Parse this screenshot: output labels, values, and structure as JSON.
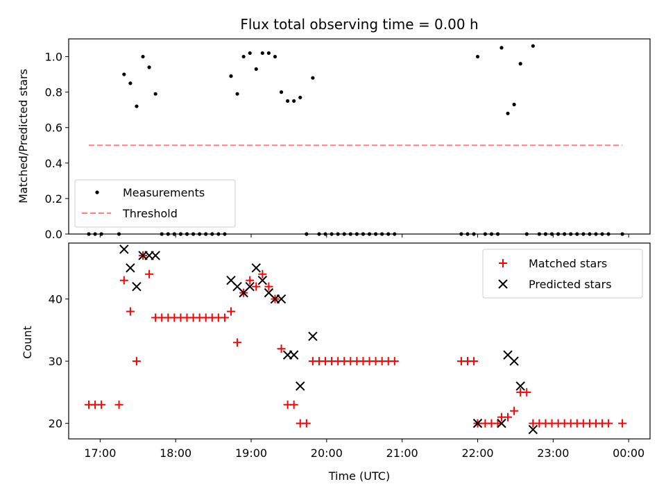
{
  "chart_data": [
    {
      "type": "scatter",
      "title": "Flux total observing time = 0.00 h",
      "ylabel": "Matched/Predicted stars",
      "xlabel": "",
      "x_is_time": true,
      "xlim": [
        "16:35",
        "00:17"
      ],
      "ylim": [
        0.0,
        1.1
      ],
      "yticks": [
        "0.0",
        "0.2",
        "0.4",
        "0.6",
        "0.8",
        "1.0"
      ],
      "xticks": [
        "17:00",
        "18:00",
        "19:00",
        "20:00",
        "21:00",
        "22:00",
        "23:00",
        "00:00"
      ],
      "legend": {
        "position": "lower-left",
        "entries": [
          "Measurements",
          "Threshold"
        ]
      },
      "series": [
        {
          "name": "Measurements",
          "marker": "dot",
          "color": "#000000",
          "points": [
            [
              "16:51",
              0.0
            ],
            [
              "16:56",
              0.0
            ],
            [
              "17:01",
              0.0
            ],
            [
              "17:15",
              0.0
            ],
            [
              "17:19",
              0.9
            ],
            [
              "17:24",
              0.85
            ],
            [
              "17:29",
              0.72
            ],
            [
              "17:34",
              1.0
            ],
            [
              "17:39",
              0.94
            ],
            [
              "17:44",
              0.79
            ],
            [
              "17:49",
              0.0
            ],
            [
              "17:54",
              0.0
            ],
            [
              "17:59",
              0.0
            ],
            [
              "18:04",
              0.0
            ],
            [
              "18:09",
              0.0
            ],
            [
              "18:14",
              0.0
            ],
            [
              "18:19",
              0.0
            ],
            [
              "18:24",
              0.0
            ],
            [
              "18:29",
              0.0
            ],
            [
              "18:34",
              0.0
            ],
            [
              "18:39",
              0.0
            ],
            [
              "18:44",
              0.89
            ],
            [
              "18:49",
              0.79
            ],
            [
              "18:54",
              1.0
            ],
            [
              "18:59",
              1.02
            ],
            [
              "19:04",
              0.93
            ],
            [
              "19:09",
              1.02
            ],
            [
              "19:14",
              1.02
            ],
            [
              "19:19",
              1.0
            ],
            [
              "19:24",
              0.8
            ],
            [
              "19:29",
              0.75
            ],
            [
              "19:34",
              0.75
            ],
            [
              "19:39",
              0.77
            ],
            [
              "19:44",
              0.0
            ],
            [
              "19:49",
              0.88
            ],
            [
              "19:54",
              0.0
            ],
            [
              "19:59",
              0.0
            ],
            [
              "20:04",
              0.0
            ],
            [
              "20:09",
              0.0
            ],
            [
              "20:14",
              0.0
            ],
            [
              "20:19",
              0.0
            ],
            [
              "20:24",
              0.0
            ],
            [
              "20:29",
              0.0
            ],
            [
              "20:34",
              0.0
            ],
            [
              "20:39",
              0.0
            ],
            [
              "20:44",
              0.0
            ],
            [
              "20:49",
              0.0
            ],
            [
              "20:54",
              0.0
            ],
            [
              "21:47",
              0.0
            ],
            [
              "21:52",
              0.0
            ],
            [
              "21:57",
              0.0
            ],
            [
              "22:00",
              1.0
            ],
            [
              "22:06",
              0.0
            ],
            [
              "22:11",
              0.0
            ],
            [
              "22:16",
              0.0
            ],
            [
              "22:19",
              1.05
            ],
            [
              "22:24",
              0.68
            ],
            [
              "22:29",
              0.73
            ],
            [
              "22:34",
              0.96
            ],
            [
              "22:39",
              0.0
            ],
            [
              "22:44",
              1.06
            ],
            [
              "22:49",
              0.0
            ],
            [
              "22:54",
              0.0
            ],
            [
              "22:59",
              0.0
            ],
            [
              "23:04",
              0.0
            ],
            [
              "23:09",
              0.0
            ],
            [
              "23:14",
              0.0
            ],
            [
              "23:19",
              0.0
            ],
            [
              "23:24",
              0.0
            ],
            [
              "23:29",
              0.0
            ],
            [
              "23:34",
              0.0
            ],
            [
              "23:39",
              0.0
            ],
            [
              "23:44",
              0.0
            ],
            [
              "23:55",
              0.0
            ]
          ]
        },
        {
          "name": "Threshold",
          "marker": "dashed-line",
          "color": "#ff7f7f",
          "points": [
            [
              "16:51",
              0.5
            ],
            [
              "23:55",
              0.5
            ]
          ]
        }
      ]
    },
    {
      "type": "scatter",
      "title": "",
      "ylabel": "Count",
      "xlabel": "Time (UTC)",
      "x_is_time": true,
      "xlim": [
        "16:35",
        "00:17"
      ],
      "ylim": [
        17.5,
        49
      ],
      "yticks": [
        "20",
        "30",
        "40"
      ],
      "xticks": [
        "17:00",
        "18:00",
        "19:00",
        "20:00",
        "21:00",
        "22:00",
        "23:00",
        "00:00"
      ],
      "legend": {
        "position": "upper-right",
        "entries": [
          "Matched stars",
          "Predicted stars"
        ]
      },
      "series": [
        {
          "name": "Matched stars",
          "marker": "plus",
          "color": "#ff0000",
          "points": [
            [
              "16:51",
              23
            ],
            [
              "16:56",
              23
            ],
            [
              "17:01",
              23
            ],
            [
              "17:15",
              23
            ],
            [
              "17:19",
              43
            ],
            [
              "17:24",
              38
            ],
            [
              "17:29",
              30
            ],
            [
              "17:34",
              47
            ],
            [
              "17:39",
              44
            ],
            [
              "17:44",
              37
            ],
            [
              "17:49",
              37
            ],
            [
              "17:54",
              37
            ],
            [
              "17:59",
              37
            ],
            [
              "18:04",
              37
            ],
            [
              "18:09",
              37
            ],
            [
              "18:14",
              37
            ],
            [
              "18:19",
              37
            ],
            [
              "18:24",
              37
            ],
            [
              "18:29",
              37
            ],
            [
              "18:34",
              37
            ],
            [
              "18:39",
              37
            ],
            [
              "18:44",
              38
            ],
            [
              "18:49",
              33
            ],
            [
              "18:54",
              41
            ],
            [
              "18:59",
              43
            ],
            [
              "19:04",
              42
            ],
            [
              "19:09",
              44
            ],
            [
              "19:14",
              42
            ],
            [
              "19:19",
              40
            ],
            [
              "19:24",
              32
            ],
            [
              "19:29",
              23
            ],
            [
              "19:34",
              23
            ],
            [
              "19:39",
              20
            ],
            [
              "19:44",
              20
            ],
            [
              "19:49",
              30
            ],
            [
              "19:54",
              30
            ],
            [
              "19:59",
              30
            ],
            [
              "20:04",
              30
            ],
            [
              "20:09",
              30
            ],
            [
              "20:14",
              30
            ],
            [
              "20:19",
              30
            ],
            [
              "20:24",
              30
            ],
            [
              "20:29",
              30
            ],
            [
              "20:34",
              30
            ],
            [
              "20:39",
              30
            ],
            [
              "20:44",
              30
            ],
            [
              "20:49",
              30
            ],
            [
              "20:54",
              30
            ],
            [
              "21:47",
              30
            ],
            [
              "21:52",
              30
            ],
            [
              "21:57",
              30
            ],
            [
              "22:00",
              20
            ],
            [
              "22:06",
              20
            ],
            [
              "22:11",
              20
            ],
            [
              "22:16",
              20
            ],
            [
              "22:19",
              21
            ],
            [
              "22:24",
              21
            ],
            [
              "22:29",
              22
            ],
            [
              "22:34",
              25
            ],
            [
              "22:39",
              25
            ],
            [
              "22:44",
              20
            ],
            [
              "22:49",
              20
            ],
            [
              "22:54",
              20
            ],
            [
              "22:59",
              20
            ],
            [
              "23:04",
              20
            ],
            [
              "23:09",
              20
            ],
            [
              "23:14",
              20
            ],
            [
              "23:19",
              20
            ],
            [
              "23:24",
              20
            ],
            [
              "23:29",
              20
            ],
            [
              "23:34",
              20
            ],
            [
              "23:39",
              20
            ],
            [
              "23:44",
              20
            ],
            [
              "23:55",
              20
            ]
          ]
        },
        {
          "name": "Predicted stars",
          "marker": "x",
          "color": "#000000",
          "points": [
            [
              "17:19",
              48
            ],
            [
              "17:24",
              45
            ],
            [
              "17:29",
              42
            ],
            [
              "17:34",
              47
            ],
            [
              "17:39",
              47
            ],
            [
              "17:44",
              47
            ],
            [
              "18:44",
              43
            ],
            [
              "18:49",
              42
            ],
            [
              "18:54",
              41
            ],
            [
              "18:59",
              42
            ],
            [
              "19:04",
              45
            ],
            [
              "19:09",
              43
            ],
            [
              "19:14",
              41
            ],
            [
              "19:19",
              40
            ],
            [
              "19:24",
              40
            ],
            [
              "19:29",
              31
            ],
            [
              "19:34",
              31
            ],
            [
              "19:39",
              26
            ],
            [
              "19:49",
              34
            ],
            [
              "22:00",
              20
            ],
            [
              "22:19",
              20
            ],
            [
              "22:24",
              31
            ],
            [
              "22:29",
              30
            ],
            [
              "22:34",
              26
            ],
            [
              "22:44",
              19
            ]
          ]
        }
      ]
    }
  ]
}
